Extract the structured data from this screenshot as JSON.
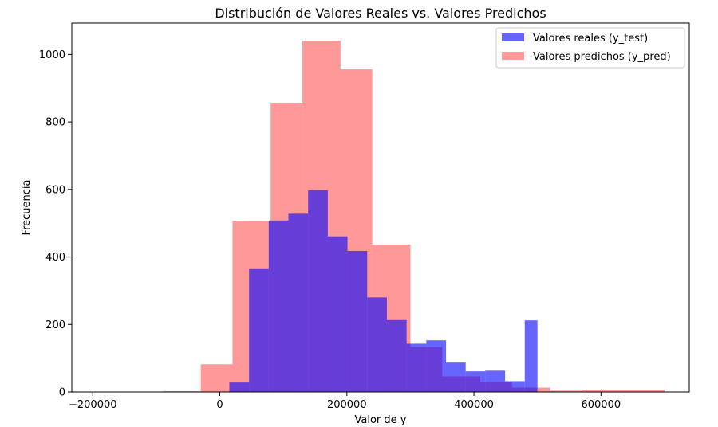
{
  "chart_data": {
    "type": "bar",
    "title": "Distribución de Valores Reales vs. Valores Predichos",
    "xlabel": "Valor de y",
    "ylabel": "Frecuencia",
    "xlim": [
      -233000,
      739000
    ],
    "ylim": [
      0,
      1093
    ],
    "x_ticks": [
      {
        "value": -200000,
        "label": "−200000"
      },
      {
        "value": 0,
        "label": "0"
      },
      {
        "value": 200000,
        "label": "200000"
      },
      {
        "value": 400000,
        "label": "400000"
      },
      {
        "value": 600000,
        "label": "600000"
      }
    ],
    "y_ticks": [
      {
        "value": 0,
        "label": "0"
      },
      {
        "value": 200,
        "label": "200"
      },
      {
        "value": 400,
        "label": "400"
      },
      {
        "value": 600,
        "label": "600"
      },
      {
        "value": 800,
        "label": "800"
      },
      {
        "value": 1000,
        "label": "1000"
      }
    ],
    "legend_position": "top-right",
    "series": [
      {
        "name": "Valores reales (y_test)",
        "color": "#0000ff",
        "opacity": 0.6,
        "bins": [
          {
            "x0": 14999,
            "x1": 46000,
            "count": 28
          },
          {
            "x0": 46000,
            "x1": 77000,
            "count": 364
          },
          {
            "x0": 77000,
            "x1": 108000,
            "count": 508
          },
          {
            "x0": 108000,
            "x1": 139000,
            "count": 528
          },
          {
            "x0": 139000,
            "x1": 170000,
            "count": 598
          },
          {
            "x0": 170000,
            "x1": 201000,
            "count": 461
          },
          {
            "x0": 201000,
            "x1": 232000,
            "count": 418
          },
          {
            "x0": 232000,
            "x1": 263000,
            "count": 280
          },
          {
            "x0": 263000,
            "x1": 294000,
            "count": 213
          },
          {
            "x0": 294000,
            "x1": 325000,
            "count": 143
          },
          {
            "x0": 325000,
            "x1": 356000,
            "count": 153
          },
          {
            "x0": 356000,
            "x1": 387000,
            "count": 87
          },
          {
            "x0": 387000,
            "x1": 418000,
            "count": 61
          },
          {
            "x0": 418000,
            "x1": 449000,
            "count": 63
          },
          {
            "x0": 449000,
            "x1": 480000,
            "count": 32
          },
          {
            "x0": 480000,
            "x1": 500001,
            "count": 212
          }
        ]
      },
      {
        "name": "Valores predichos (y_pred)",
        "color": "#ff0000",
        "opacity": 0.4,
        "bins": [
          {
            "x0": -200000,
            "x1": -140000,
            "count": 1
          },
          {
            "x0": -140000,
            "x1": -90000,
            "count": 0
          },
          {
            "x0": -90000,
            "x1": -30000,
            "count": 2
          },
          {
            "x0": -30000,
            "x1": 20000,
            "count": 82
          },
          {
            "x0": 20000,
            "x1": 80000,
            "count": 507
          },
          {
            "x0": 80000,
            "x1": 130000,
            "count": 857
          },
          {
            "x0": 130000,
            "x1": 190000,
            "count": 1041
          },
          {
            "x0": 190000,
            "x1": 240000,
            "count": 956
          },
          {
            "x0": 240000,
            "x1": 300000,
            "count": 437
          },
          {
            "x0": 300000,
            "x1": 350000,
            "count": 133
          },
          {
            "x0": 350000,
            "x1": 410000,
            "count": 46
          },
          {
            "x0": 410000,
            "x1": 460000,
            "count": 29
          },
          {
            "x0": 460000,
            "x1": 520000,
            "count": 13
          },
          {
            "x0": 520000,
            "x1": 570000,
            "count": 4
          },
          {
            "x0": 570000,
            "x1": 630000,
            "count": 7
          },
          {
            "x0": 630000,
            "x1": 700000,
            "count": 7
          }
        ]
      }
    ]
  }
}
